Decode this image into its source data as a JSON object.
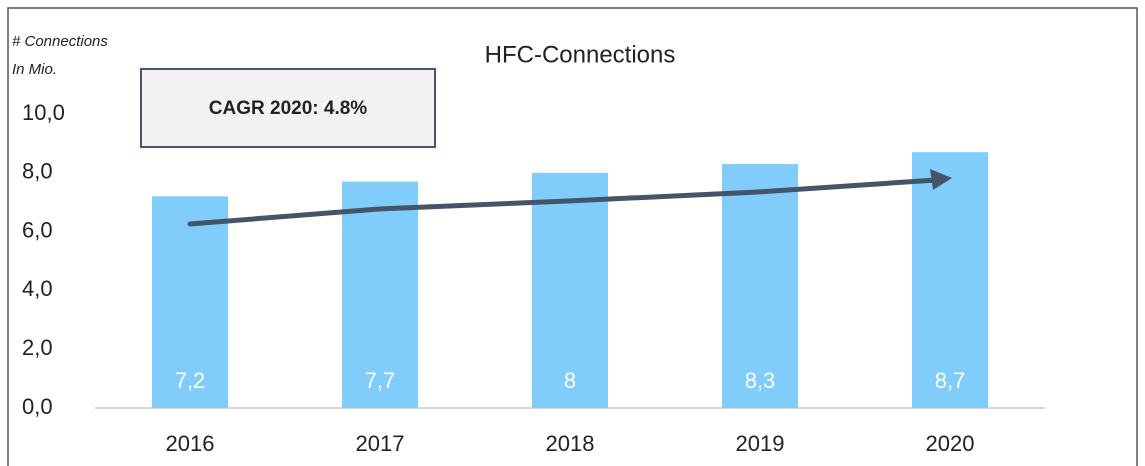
{
  "chart_data": {
    "type": "bar",
    "title": "HFC-Connections",
    "y_label_lines": [
      "# Connections",
      "In Mio."
    ],
    "annotation": "CAGR 2020: 4.8%",
    "categories": [
      "2016",
      "2017",
      "2018",
      "2019",
      "2020"
    ],
    "values": [
      7.2,
      7.7,
      8,
      8.3,
      8.7
    ],
    "value_labels": [
      "7,2",
      "7,7",
      "8",
      "8,3",
      "8,7"
    ],
    "color": "#80cdfb",
    "ylim": [
      0,
      10
    ],
    "yticks": [
      {
        "value": 0,
        "label": "0,0"
      },
      {
        "value": 2,
        "label": "2,0"
      },
      {
        "value": 4,
        "label": "4,0"
      },
      {
        "value": 6,
        "label": "6,0"
      },
      {
        "value": 8,
        "label": "8,0"
      },
      {
        "value": 10,
        "label": "10,0"
      }
    ],
    "grid": false
  }
}
